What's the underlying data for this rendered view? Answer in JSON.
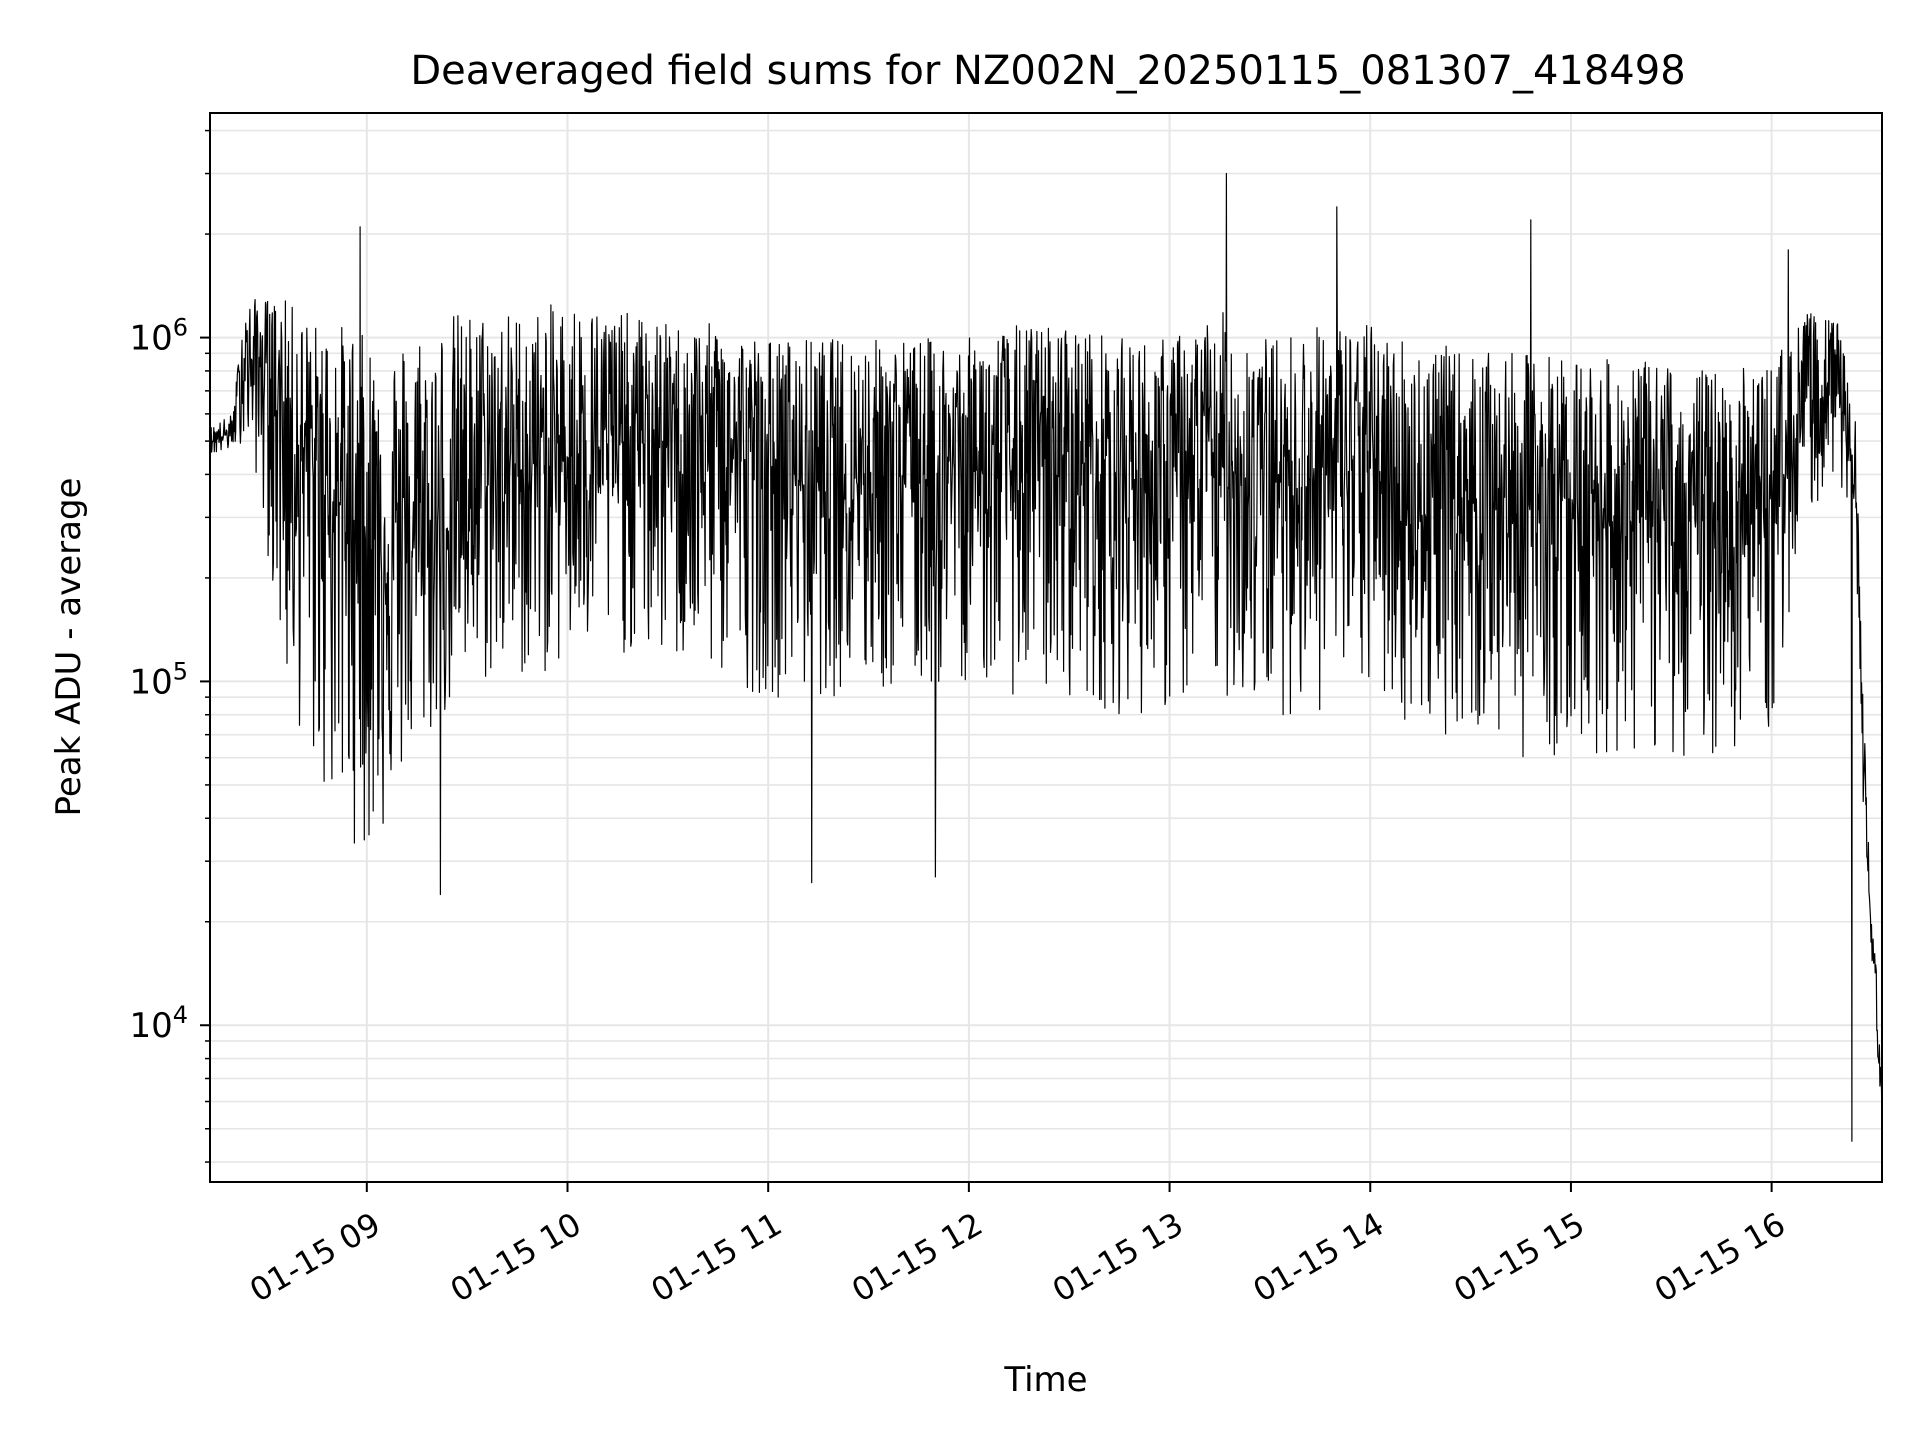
{
  "chart_data": {
    "type": "line",
    "title": "Deaveraged field sums for NZ002N_20250115_081307_418498",
    "xlabel": "Time",
    "ylabel": "Peak ADU - average",
    "y_scale": "log",
    "ylim": [
      3500,
      4500000
    ],
    "xlim": [
      "2025-01-15 08:13:07",
      "2025-01-15 16:33:00"
    ],
    "x_ticks": [
      {
        "value": "2025-01-15 09:00",
        "label": "01-15 09"
      },
      {
        "value": "2025-01-15 10:00",
        "label": "01-15 10"
      },
      {
        "value": "2025-01-15 11:00",
        "label": "01-15 11"
      },
      {
        "value": "2025-01-15 12:00",
        "label": "01-15 12"
      },
      {
        "value": "2025-01-15 13:00",
        "label": "01-15 13"
      },
      {
        "value": "2025-01-15 14:00",
        "label": "01-15 14"
      },
      {
        "value": "2025-01-15 15:00",
        "label": "01-15 15"
      },
      {
        "value": "2025-01-15 16:00",
        "label": "01-15 16"
      }
    ],
    "y_ticks": [
      {
        "value": 10000,
        "base": "10",
        "exp": "4"
      },
      {
        "value": 100000,
        "base": "10",
        "exp": "5"
      },
      {
        "value": 1000000,
        "base": "10",
        "exp": "6"
      }
    ],
    "grid": true,
    "line_color": "#000000",
    "series": [
      {
        "x": [
          "2025-01-15 08:13",
          "2025-01-15 08:20",
          "2025-01-15 08:23",
          "2025-01-15 08:26",
          "2025-01-15 08:30",
          "2025-01-15 08:35",
          "2025-01-15 08:40",
          "2025-01-15 08:45",
          "2025-01-15 08:50",
          "2025-01-15 08:55",
          "2025-01-15 09:00",
          "2025-01-15 09:05",
          "2025-01-15 09:10",
          "2025-01-15 09:15",
          "2025-01-15 09:20",
          "2025-01-15 09:25",
          "2025-01-15 09:30",
          "2025-01-15 09:40",
          "2025-01-15 09:50",
          "2025-01-15 10:00",
          "2025-01-15 10:15",
          "2025-01-15 10:30",
          "2025-01-15 10:45",
          "2025-01-15 11:00",
          "2025-01-15 11:15",
          "2025-01-15 11:30",
          "2025-01-15 11:45",
          "2025-01-15 12:00",
          "2025-01-15 12:15",
          "2025-01-15 12:30",
          "2025-01-15 12:45",
          "2025-01-15 13:00",
          "2025-01-15 13:15",
          "2025-01-15 13:30",
          "2025-01-15 13:45",
          "2025-01-15 14:00",
          "2025-01-15 14:15",
          "2025-01-15 14:30",
          "2025-01-15 14:45",
          "2025-01-15 15:00",
          "2025-01-15 15:15",
          "2025-01-15 15:30",
          "2025-01-15 15:45",
          "2025-01-15 16:00",
          "2025-01-15 16:10",
          "2025-01-15 16:20",
          "2025-01-15 16:25",
          "2025-01-15 16:28",
          "2025-01-15 16:30",
          "2025-01-15 16:31",
          "2025-01-15 16:32",
          "2025-01-15 16:33"
        ],
        "mid": [
          500000,
          530000,
          900000,
          800000,
          850000,
          600000,
          450000,
          400000,
          350000,
          300000,
          280000,
          250000,
          220000,
          250000,
          230000,
          300000,
          350000,
          400000,
          420000,
          450000,
          500000,
          480000,
          500000,
          400000,
          380000,
          420000,
          400000,
          420000,
          400000,
          450000,
          400000,
          380000,
          420000,
          380000,
          400000,
          420000,
          300000,
          350000,
          320000,
          350000,
          300000,
          300000,
          300000,
          320000,
          600000,
          750000,
          350000,
          40000,
          17000,
          14000,
          9000,
          5500
        ],
        "high": [
          550000,
          600000,
          1200000,
          1300000,
          1300000,
          1300000,
          1200000,
          1100000,
          1100000,
          1100000,
          1000000,
          1000000,
          1000000,
          1100000,
          1100000,
          1200000,
          1200000,
          1200000,
          1200000,
          1300000,
          1200000,
          1100000,
          1100000,
          1000000,
          1000000,
          1000000,
          1000000,
          1000000,
          1100000,
          1100000,
          1000000,
          1000000,
          1200000,
          1000000,
          1100000,
          1100000,
          1000000,
          900000,
          900000,
          900000,
          850000,
          850000,
          800000,
          850000,
          1200000,
          1100000,
          600000,
          60000,
          19000,
          16000,
          12000,
          6500
        ],
        "low": [
          450000,
          470000,
          500000,
          450000,
          250000,
          100000,
          70000,
          50000,
          40000,
          35000,
          30000,
          35000,
          50000,
          60000,
          70000,
          80000,
          90000,
          100000,
          100000,
          110000,
          120000,
          110000,
          100000,
          90000,
          90000,
          90000,
          90000,
          100000,
          90000,
          90000,
          80000,
          80000,
          90000,
          80000,
          80000,
          90000,
          70000,
          70000,
          60000,
          60000,
          60000,
          60000,
          60000,
          70000,
          300000,
          400000,
          200000,
          30000,
          15000,
          12000,
          7000,
          5000
        ]
      }
    ],
    "notable_spikes": [
      {
        "x": "2025-01-15 08:58",
        "y": 2100000
      },
      {
        "x": "2025-01-15 13:17",
        "y": 3000000
      },
      {
        "x": "2025-01-15 13:50",
        "y": 2400000
      },
      {
        "x": "2025-01-15 14:48",
        "y": 2200000
      },
      {
        "x": "2025-01-15 16:05",
        "y": 1800000
      },
      {
        "x": "2025-01-15 09:22",
        "y": 24000
      },
      {
        "x": "2025-01-15 11:13",
        "y": 26000
      },
      {
        "x": "2025-01-15 11:50",
        "y": 27000
      },
      {
        "x": "2025-01-15 16:24",
        "y": 4600
      }
    ]
  }
}
